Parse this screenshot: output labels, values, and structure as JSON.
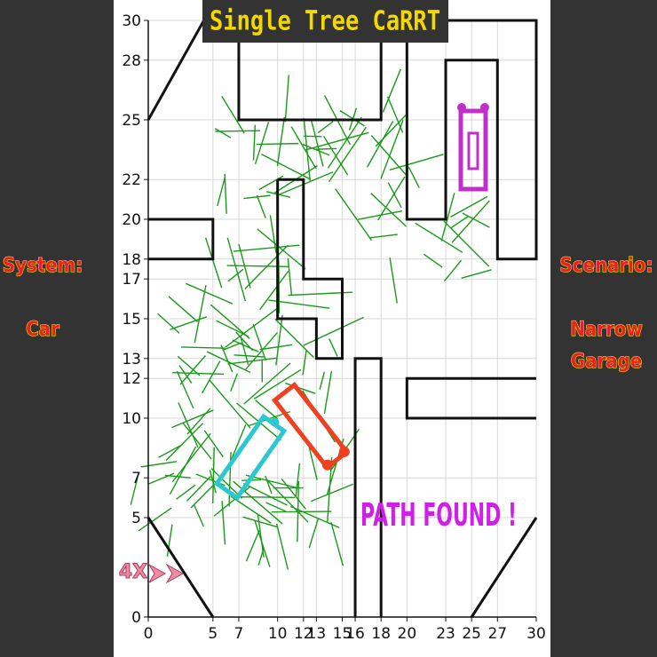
{
  "title": "Single Tree CaRRT",
  "left_panel": {
    "label": "System:",
    "value": "Car"
  },
  "right_panel": {
    "label": "Scenario:",
    "value_lines": [
      "Narrow",
      "Garage"
    ]
  },
  "status": "PATH FOUND !",
  "speed": "4X",
  "plot": {
    "xlim": [
      0,
      30
    ],
    "ylim": [
      0,
      30
    ],
    "xticks": [
      0,
      5,
      7,
      10,
      12,
      13,
      15,
      16,
      18,
      20,
      23,
      25,
      27,
      30
    ],
    "yticks": [
      0,
      5,
      7,
      10,
      12,
      13,
      15,
      17,
      18,
      20,
      22,
      25,
      28,
      30
    ]
  }
}
